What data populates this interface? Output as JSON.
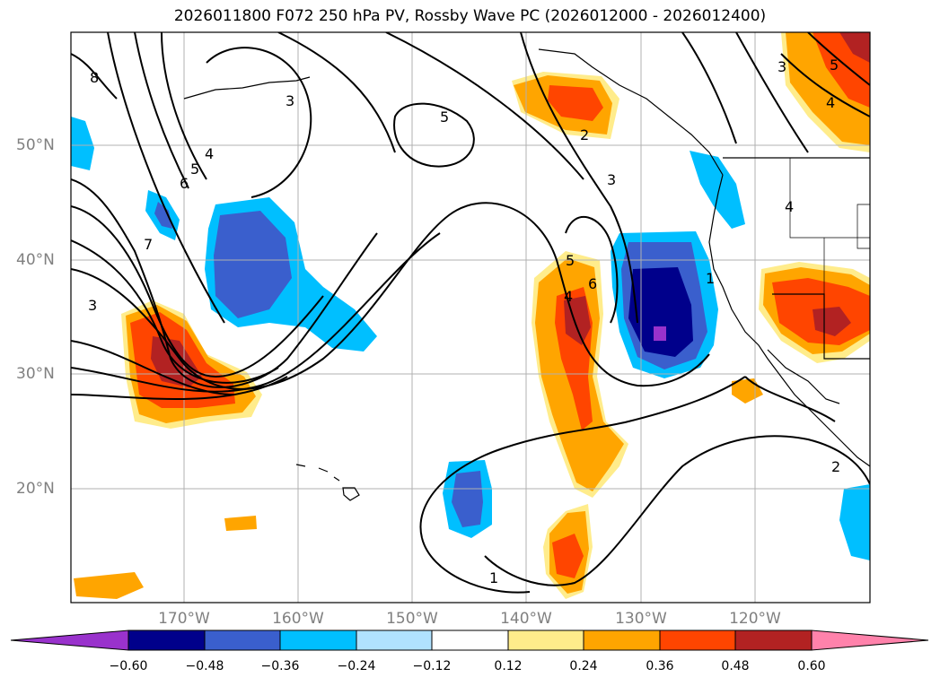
{
  "title": "2026011800 F072 250 hPa PV, Rossby Wave PC (2026012000 - 2026012400)",
  "lat_labels": [
    "50°N",
    "40°N",
    "30°N",
    "20°N"
  ],
  "lon_labels": [
    "170°W",
    "160°W",
    "150°W",
    "140°W",
    "130°W",
    "120°W"
  ],
  "contour_labels": [
    "8",
    "3",
    "4",
    "5",
    "6",
    "7",
    "3",
    "5",
    "2",
    "3",
    "5",
    "4",
    "6",
    "1",
    "2",
    "4",
    "3",
    "5",
    "4",
    "1"
  ],
  "colorbar": {
    "ticks": [
      "−0.60",
      "−0.48",
      "−0.36",
      "−0.24",
      "−0.12",
      "0.12",
      "0.24",
      "0.36",
      "0.48",
      "0.60"
    ],
    "colors": [
      "#9932cc",
      "#00008b",
      "#3a5fcd",
      "#00bfff",
      "#b0e2ff",
      "#ffffff",
      "#ffec8b",
      "#ffa500",
      "#ff4500",
      "#b22222",
      "#ff82ab"
    ]
  },
  "colors": {
    "grid": "#b0b0b0",
    "coast": "#000000",
    "contour": "#000000"
  }
}
